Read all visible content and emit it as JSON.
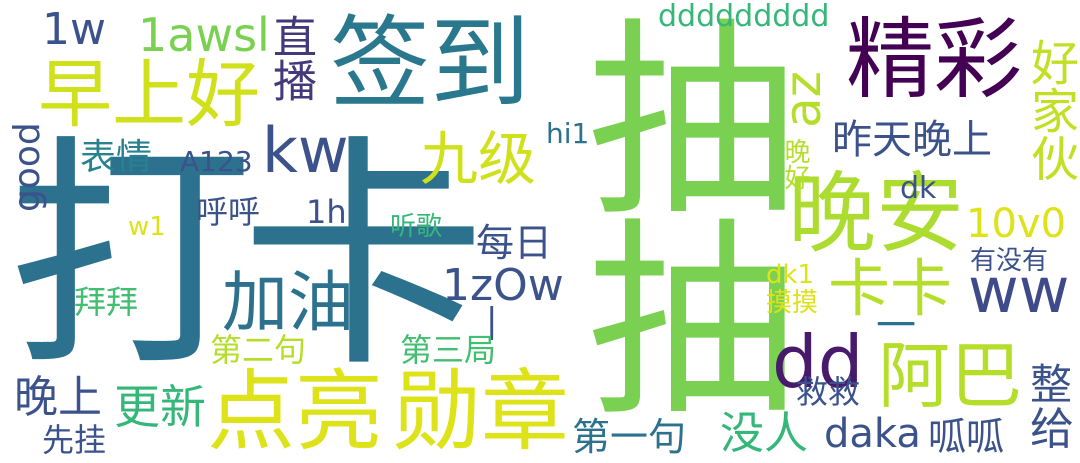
{
  "words": {
    "dakay": "打卡",
    "chou": "抽抽",
    "qiandao": "签到",
    "zaoshanghao": "早上好",
    "jingcai": "精彩",
    "wanan": "晚安",
    "dianliang": "点亮",
    "xunzhang": "勋章",
    "jiayou": "加油",
    "kaka": "卡卡",
    "aba": "阿巴",
    "dd": "dd",
    "jiuji": "九级",
    "kw": "kw",
    "zhibo": "直播",
    "awsl": "1awsl",
    "w1_top": "1w",
    "ddd": "ddddddddd",
    "az": "az",
    "haojiahuo": "好家伙",
    "zuotian": "昨天晚上",
    "wanhao": "晚好",
    "biaoqing": "表情",
    "a123": "A123",
    "hi1": "hi1",
    "good": "good",
    "huhu": "呼呼",
    "h1": "1h",
    "w1": "w1",
    "tingge": "听歌",
    "meiri": "每日",
    "v10": "10v0",
    "dk": "dk",
    "youmeiyou": "有没有",
    "dk1": "dk1",
    "mozhao": "摸摸",
    "bai": "拜拜",
    "izow": "1zOw",
    "bar": "|",
    "ww": "ww",
    "dash": "一",
    "diyiju": "第一句",
    "dierju": "第二句",
    "disanju": "第三局",
    "wanshang": "晚上",
    "gengxin": "更新",
    "jiujiu": "救救",
    "meiren": "没人",
    "daka2": "daka",
    "guagua": "呱呱",
    "xianguan": "先挂",
    "gei": "给",
    "zheng": "整"
  },
  "palette": {
    "dark_teal": "#2b7a8e",
    "light_green": "#7ed34f",
    "yellow": "#dce319",
    "purple": "#440154",
    "mid_teal": "#3b8a8c",
    "green": "#42be71",
    "navy": "#3a528b"
  }
}
